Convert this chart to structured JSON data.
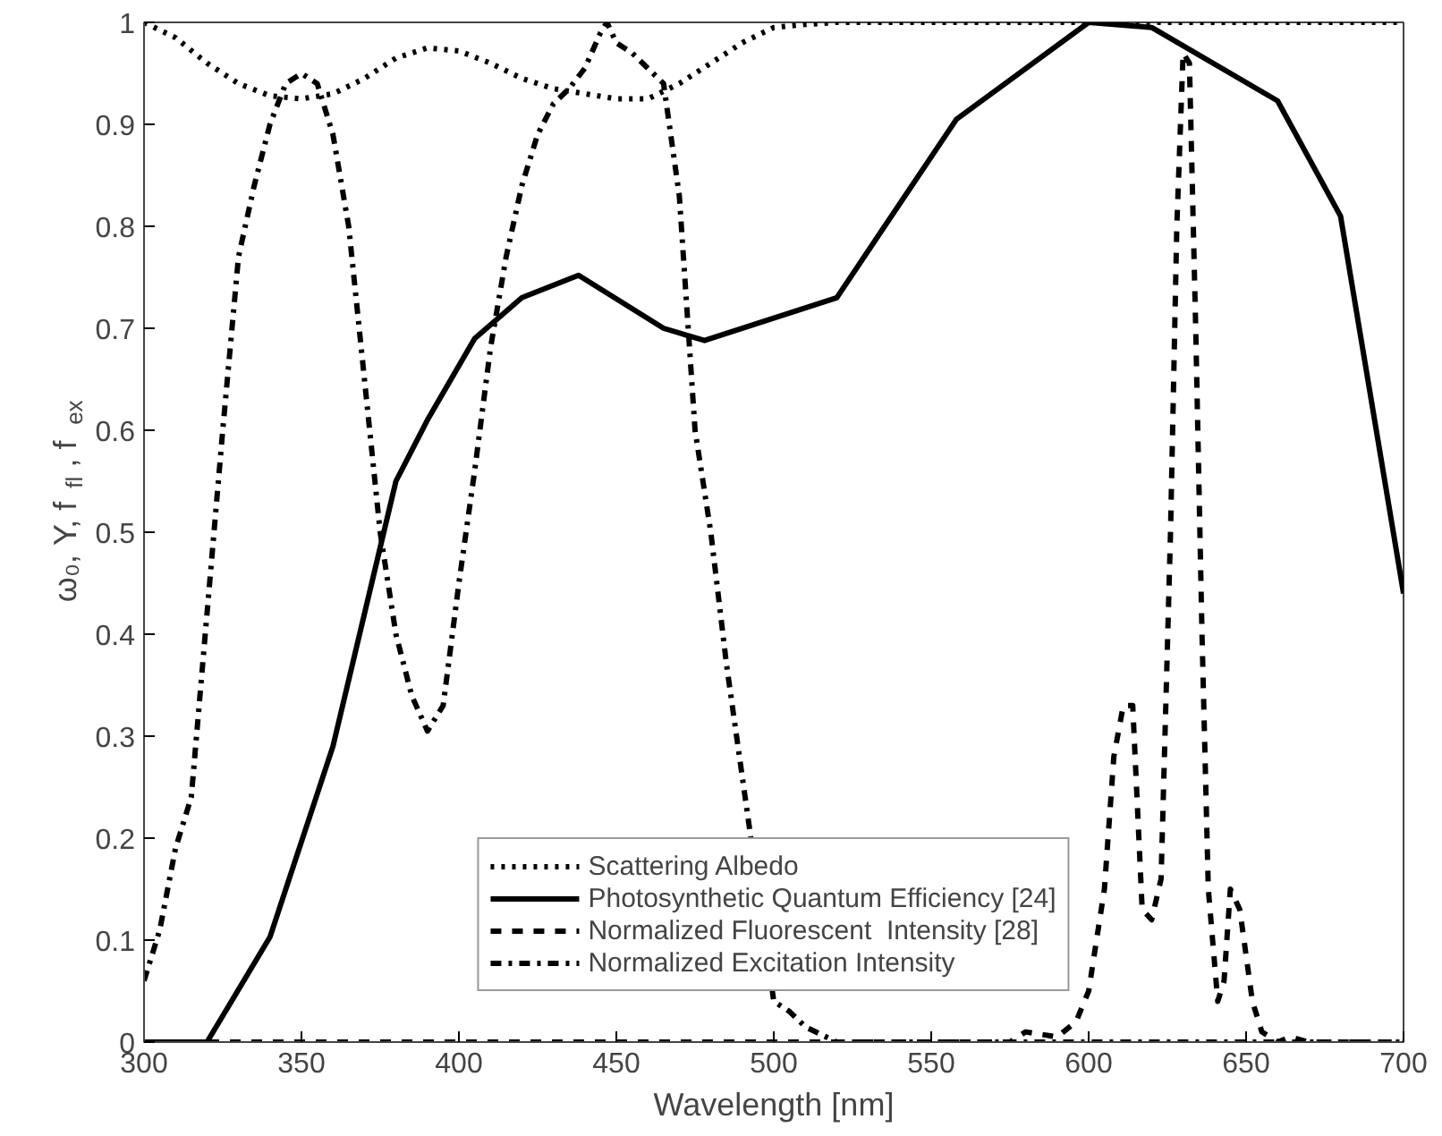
{
  "chart_data": {
    "type": "line",
    "xlabel": "Wavelength [nm]",
    "ylabel": "ω₀, Y, f$_{fl}$, f$_{ex}$",
    "xlim": [
      300,
      700
    ],
    "ylim": [
      0,
      1
    ],
    "xticks": [
      300,
      350,
      400,
      450,
      500,
      550,
      600,
      650,
      700
    ],
    "yticks": [
      0,
      0.1,
      0.2,
      0.3,
      0.4,
      0.5,
      0.6,
      0.7,
      0.8,
      0.9,
      1
    ],
    "grid": false,
    "legend": "bottom",
    "marker": "none",
    "series": [
      {
        "name": "Scattering Albedo",
        "color": "#000000",
        "line_style": "dotted",
        "x": [
          300,
          310,
          320,
          330,
          340,
          350,
          360,
          370,
          380,
          390,
          400,
          410,
          420,
          430,
          440,
          450,
          460,
          470,
          480,
          490,
          500,
          510,
          520,
          550,
          600,
          650,
          700
        ],
        "values": [
          1.0,
          0.985,
          0.96,
          0.94,
          0.928,
          0.925,
          0.93,
          0.945,
          0.965,
          0.975,
          0.972,
          0.96,
          0.945,
          0.935,
          0.93,
          0.925,
          0.925,
          0.94,
          0.96,
          0.98,
          0.995,
          0.998,
          1.0,
          1.0,
          1.0,
          1.0,
          1.0
        ]
      },
      {
        "name": "Photosynthetic Quantum Efficiency [24]",
        "color": "#000000",
        "line_style": "solid",
        "x": [
          300,
          320,
          340,
          360,
          380,
          390,
          405,
          420,
          438,
          465,
          478,
          520,
          558,
          600,
          620,
          660,
          680,
          700
        ],
        "values": [
          0,
          0,
          0.103,
          0.29,
          0.55,
          0.61,
          0.69,
          0.73,
          0.752,
          0.7,
          0.688,
          0.73,
          0.905,
          1.0,
          0.995,
          0.923,
          0.81,
          0.44
        ]
      },
      {
        "name": "Normalized Fluorescent  Intensity [28]",
        "color": "#000000",
        "line_style": "dashed",
        "x": [
          300,
          575,
          580,
          590,
          596,
          600,
          605,
          608,
          611,
          614,
          617,
          620,
          623,
          626,
          628,
          630,
          632,
          634,
          636,
          638,
          641,
          643,
          645,
          648,
          652,
          655,
          660,
          664,
          670,
          700
        ],
        "values": [
          0,
          0,
          0.01,
          0.005,
          0.02,
          0.05,
          0.15,
          0.28,
          0.33,
          0.33,
          0.13,
          0.12,
          0.16,
          0.5,
          0.8,
          0.97,
          0.96,
          0.7,
          0.4,
          0.15,
          0.04,
          0.06,
          0.15,
          0.13,
          0.04,
          0.01,
          0,
          0.005,
          0,
          0
        ]
      },
      {
        "name": "Normalized Excitation Intensity",
        "color": "#000000",
        "line_style": "dashdot",
        "x": [
          300,
          305,
          310,
          315,
          320,
          325,
          330,
          335,
          340,
          345,
          350,
          355,
          360,
          365,
          370,
          375,
          380,
          385,
          390,
          395,
          400,
          405,
          410,
          415,
          420,
          425,
          430,
          435,
          440,
          445,
          447,
          450,
          455,
          460,
          465,
          470,
          475,
          480,
          485,
          500,
          505,
          510,
          520,
          700
        ],
        "values": [
          0.06,
          0.11,
          0.19,
          0.24,
          0.42,
          0.6,
          0.77,
          0.84,
          0.9,
          0.94,
          0.95,
          0.94,
          0.89,
          0.8,
          0.65,
          0.5,
          0.4,
          0.34,
          0.305,
          0.33,
          0.45,
          0.56,
          0.68,
          0.77,
          0.84,
          0.89,
          0.92,
          0.935,
          0.955,
          0.99,
          1.0,
          0.98,
          0.97,
          0.955,
          0.94,
          0.83,
          0.6,
          0.5,
          0.37,
          0.04,
          0.03,
          0.015,
          0,
          0
        ]
      }
    ]
  }
}
